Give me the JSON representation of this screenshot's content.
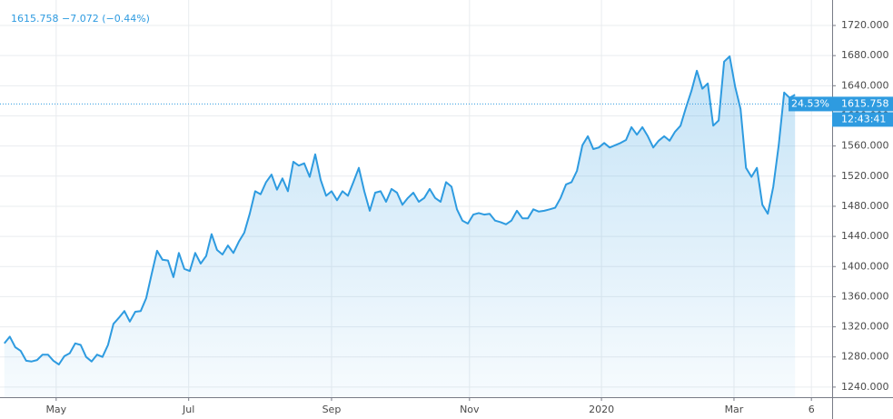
{
  "chart_data": {
    "type": "area",
    "legend": {
      "price": "1615.758",
      "change": "−7.072",
      "change_pct": "(−0.44%)"
    },
    "series": [
      {
        "color": "#2e9be0",
        "values": [
          1298,
          1307,
          1293,
          1288,
          1275,
          1274,
          1276,
          1283,
          1283,
          1275,
          1270,
          1281,
          1285,
          1298,
          1296,
          1280,
          1274,
          1283,
          1280,
          1296,
          1324,
          1332,
          1341,
          1327,
          1340,
          1341,
          1358,
          1390,
          1421,
          1409,
          1408,
          1386,
          1418,
          1397,
          1394,
          1418,
          1404,
          1414,
          1443,
          1422,
          1416,
          1428,
          1418,
          1433,
          1445,
          1470,
          1500,
          1496,
          1512,
          1522,
          1502,
          1517,
          1500,
          1539,
          1534,
          1537,
          1519,
          1549,
          1515,
          1494,
          1500,
          1488,
          1500,
          1494,
          1512,
          1531,
          1500,
          1474,
          1498,
          1500,
          1486,
          1503,
          1498,
          1482,
          1491,
          1498,
          1486,
          1491,
          1503,
          1491,
          1486,
          1512,
          1506,
          1476,
          1461,
          1457,
          1469,
          1471,
          1469,
          1470,
          1461,
          1459,
          1456,
          1461,
          1474,
          1464,
          1464,
          1476,
          1473,
          1474,
          1476,
          1478,
          1491,
          1509,
          1512,
          1527,
          1561,
          1573,
          1556,
          1558,
          1564,
          1558,
          1561,
          1564,
          1568,
          1585,
          1575,
          1585,
          1573,
          1558,
          1567,
          1573,
          1567,
          1579,
          1587,
          1611,
          1633,
          1660,
          1636,
          1643,
          1587,
          1594,
          1672,
          1679,
          1639,
          1609,
          1531,
          1519,
          1531,
          1482,
          1470,
          1506,
          1561,
          1631,
          1624,
          1628
        ]
      }
    ],
    "xlim": [
      -0.8,
      151.8
    ],
    "xticks": [
      {
        "value": 9.5,
        "label": "May"
      },
      {
        "value": 33.8,
        "label": "Jul"
      },
      {
        "value": 60,
        "label": "Sep"
      },
      {
        "value": 85.3,
        "label": "Nov"
      },
      {
        "value": 109.5,
        "label": "2020"
      },
      {
        "value": 133.8,
        "label": "Mar"
      },
      {
        "value": 148,
        "label": "6"
      }
    ],
    "ylim": [
      1226.6,
      1753.8
    ],
    "yticks": [
      {
        "value": 1240,
        "label": "1240.000"
      },
      {
        "value": 1280,
        "label": "1280.000"
      },
      {
        "value": 1320,
        "label": "1320.000"
      },
      {
        "value": 1360,
        "label": "1360.000"
      },
      {
        "value": 1400,
        "label": "1400.000"
      },
      {
        "value": 1440,
        "label": "1440.000"
      },
      {
        "value": 1480,
        "label": "1480.000"
      },
      {
        "value": 1520,
        "label": "1520.000"
      },
      {
        "value": 1560,
        "label": "1560.000"
      },
      {
        "value": 1600,
        "label": "1600.000"
      },
      {
        "value": 1640,
        "label": "1640.000"
      },
      {
        "value": 1680,
        "label": "1680.000"
      },
      {
        "value": 1720,
        "label": "1720.000"
      }
    ],
    "grid": true,
    "price_line": {
      "value": 1615.758,
      "percent_label": "24.53%",
      "time_label": "12:43:41"
    }
  }
}
